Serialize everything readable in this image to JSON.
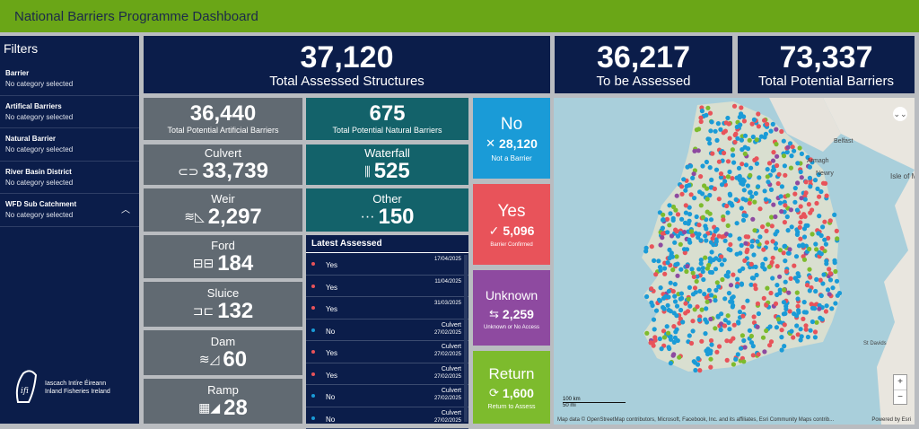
{
  "header": {
    "title": "National Barriers Programme Dashboard"
  },
  "filters": {
    "title": "Filters",
    "items": [
      {
        "label": "Barrier",
        "value": "No category selected"
      },
      {
        "label": "Artifical Barriers",
        "value": "No category selected"
      },
      {
        "label": "Natural Barrier",
        "value": "No category selected"
      },
      {
        "label": "River Basin District",
        "value": "No category selected"
      },
      {
        "label": "WFD Sub Catchment",
        "value": "No category selected"
      }
    ]
  },
  "logo": {
    "line1": "Iascach Intíre Éireann",
    "line2": "Inland Fisheries Ireland",
    "mark": "ifi"
  },
  "kpis": {
    "assessed": {
      "num": "37,120",
      "label": "Total Assessed Structures"
    },
    "to_assess": {
      "num": "36,217",
      "label": "To be Assessed"
    },
    "potential": {
      "num": "73,337",
      "label": "Total Potential Barriers"
    },
    "artificial": {
      "num": "36,440",
      "label": "Total Potential Artificial Barriers"
    },
    "natural": {
      "num": "675",
      "label": "Total Potential Natural Barriers"
    }
  },
  "types": {
    "culvert": {
      "label": "Culvert",
      "num": "33,739"
    },
    "weir": {
      "label": "Weir",
      "num": "2,297"
    },
    "ford": {
      "label": "Ford",
      "num": "184"
    },
    "sluice": {
      "label": "Sluice",
      "num": "132"
    },
    "dam": {
      "label": "Dam",
      "num": "60"
    },
    "ramp": {
      "label": "Ramp",
      "num": "28"
    },
    "waterfall": {
      "label": "Waterfall",
      "num": "525"
    },
    "other": {
      "label": "Other",
      "num": "150"
    }
  },
  "status": {
    "no": {
      "title": "No",
      "num": "28,120",
      "sub": "Not a Barrier",
      "color": "#1a9bd7"
    },
    "yes": {
      "title": "Yes",
      "num": "5,096",
      "sub": "Barrier Confirmed",
      "color": "#e8535a"
    },
    "unknown": {
      "title": "Unknown",
      "num": "2,259",
      "sub": "Unknown or No Access",
      "color": "#8e4aa0"
    },
    "ret": {
      "title": "Return",
      "num": "1,600",
      "sub": "Return to Assess",
      "color": "#7dbb2d"
    }
  },
  "latest": {
    "title": "Latest Assessed",
    "rows": [
      {
        "status": "Yes",
        "type": "",
        "date": "17/04/2025",
        "color": "#e8535a"
      },
      {
        "status": "Yes",
        "type": "",
        "date": "11/04/2025",
        "color": "#e8535a"
      },
      {
        "status": "Yes",
        "type": "",
        "date": "31/03/2025",
        "color": "#e8535a"
      },
      {
        "status": "No",
        "type": "Culvert",
        "date": "27/02/2025",
        "color": "#1a9bd7"
      },
      {
        "status": "Yes",
        "type": "Culvert",
        "date": "27/02/2025",
        "color": "#e8535a"
      },
      {
        "status": "Yes",
        "type": "Culvert",
        "date": "27/02/2025",
        "color": "#e8535a"
      },
      {
        "status": "No",
        "type": "Culvert",
        "date": "27/02/2025",
        "color": "#1a9bd7"
      },
      {
        "status": "No",
        "type": "Culvert",
        "date": "27/02/2025",
        "color": "#1a9bd7"
      }
    ]
  },
  "map": {
    "labels": {
      "belfast": "Belfast",
      "armagh": "Armagh",
      "newry": "Newry",
      "isle": "Isle of M",
      "stdavids": "St Davids"
    },
    "scale_km": "100 km",
    "scale_mi": "50 mi",
    "attribution": "Map data © OpenStreetMap contributors, Microsoft, Facebook, Inc. and its affiliates, Esri Community Maps contrib...",
    "powered": "Powered by Esri",
    "zoom_in": "+",
    "zoom_out": "−",
    "collapse": "⌄⌄"
  }
}
